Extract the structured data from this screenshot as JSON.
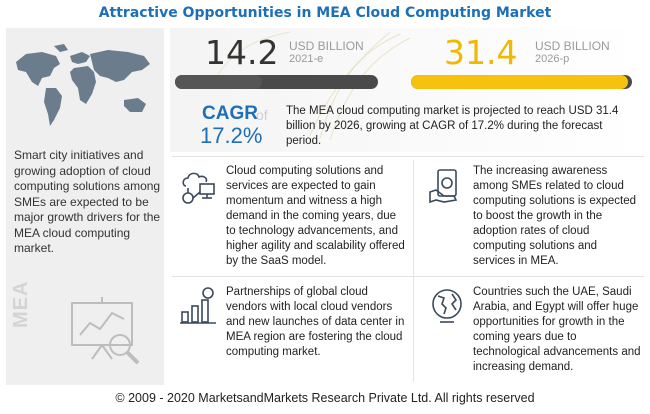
{
  "title": "Attractive Opportunities in MEA Cloud Computing Market",
  "stats": [
    {
      "value": "14.2",
      "unit": "USD BILLION",
      "year": "2021-e",
      "fill": 0.43,
      "color": "#555555"
    },
    {
      "value": "31.4",
      "unit": "USD BILLION",
      "year": "2026-p",
      "fill": 0.98,
      "color": "#f7c20d"
    }
  ],
  "cagr": {
    "label": "CAGR",
    "of": "of",
    "value": "17.2%",
    "summary": "The MEA cloud computing market is projected to reach USD 31.4 billion by 2026, growing at CAGR of 17.2% during the forecast period."
  },
  "sidebar": {
    "text": "Smart city initiatives and growing adoption of cloud computing solutions among SMEs are expected to be major growth drivers for the MEA cloud computing market.",
    "region": "MEA"
  },
  "cells": [
    {
      "icon": "cloud-network-icon",
      "text": "Cloud computing solutions and services are expected to gain momentum and witness a high demand in the coming years, due to technology advancements, and higher agility and scalability offered by the SaaS model."
    },
    {
      "icon": "money-hand-icon",
      "text": "The increasing awareness among SMEs related to cloud computing solutions is expected to boost the growth in the adoption rates of cloud computing solutions and services in MEA."
    },
    {
      "icon": "growth-chart-icon",
      "text": "Partnerships of global cloud vendors with local cloud vendors and new launches of data center in MEA region are fostering the cloud computing market."
    },
    {
      "icon": "globe-icon",
      "text": "Countries such the UAE, Saudi Arabia, and Egypt will offer huge opportunities for growth in the coming years due to technological advancements and increasing demand."
    }
  ],
  "footer": "© 2009 - 2020 MarketsandMarkets Research Private Ltd. All rights reserved"
}
